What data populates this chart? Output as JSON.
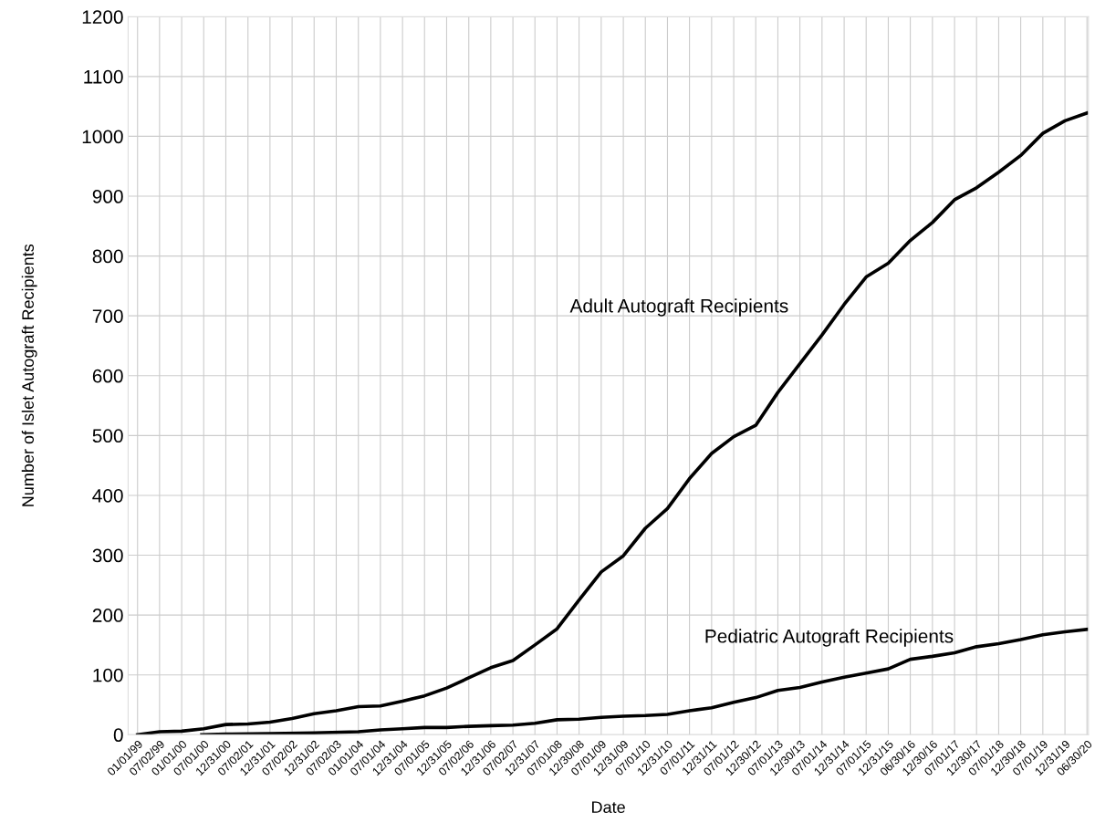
{
  "chart_data": {
    "type": "line",
    "xlabel": "Date",
    "ylabel": "Number of Islet Autograft Recipients",
    "xlim": [
      "1998-10-15",
      "2020-07-12"
    ],
    "ylim": [
      0,
      1200
    ],
    "yticks": [
      0,
      100,
      200,
      300,
      400,
      500,
      600,
      700,
      800,
      900,
      1000,
      1100,
      1200
    ],
    "xticks": [
      {
        "value": "1999-01-01",
        "label": "01/01/99"
      },
      {
        "value": "1999-07-02",
        "label": "07/02/99"
      },
      {
        "value": "2000-01-01",
        "label": "01/01/00"
      },
      {
        "value": "2000-07-01",
        "label": "07/01/00"
      },
      {
        "value": "2000-12-31",
        "label": "12/31/00"
      },
      {
        "value": "2001-07-02",
        "label": "07/02/01"
      },
      {
        "value": "2001-12-31",
        "label": "12/31/01"
      },
      {
        "value": "2002-07-02",
        "label": "07/02/02"
      },
      {
        "value": "2002-12-31",
        "label": "12/31/02"
      },
      {
        "value": "2003-07-02",
        "label": "07/02/03"
      },
      {
        "value": "2004-01-01",
        "label": "01/01/04"
      },
      {
        "value": "2004-07-01",
        "label": "07/01/04"
      },
      {
        "value": "2004-12-31",
        "label": "12/31/04"
      },
      {
        "value": "2005-07-01",
        "label": "07/01/05"
      },
      {
        "value": "2005-12-31",
        "label": "12/31/05"
      },
      {
        "value": "2006-07-02",
        "label": "07/02/06"
      },
      {
        "value": "2006-12-31",
        "label": "12/31/06"
      },
      {
        "value": "2007-07-02",
        "label": "07/02/07"
      },
      {
        "value": "2007-12-31",
        "label": "12/31/07"
      },
      {
        "value": "2008-07-01",
        "label": "07/01/08"
      },
      {
        "value": "2008-12-30",
        "label": "12/30/08"
      },
      {
        "value": "2009-07-01",
        "label": "07/01/09"
      },
      {
        "value": "2009-12-31",
        "label": "12/31/09"
      },
      {
        "value": "2010-07-01",
        "label": "07/01/10"
      },
      {
        "value": "2010-12-31",
        "label": "12/31/10"
      },
      {
        "value": "2011-07-01",
        "label": "07/01/11"
      },
      {
        "value": "2011-12-31",
        "label": "12/31/11"
      },
      {
        "value": "2012-07-01",
        "label": "07/01/12"
      },
      {
        "value": "2012-12-30",
        "label": "12/30/12"
      },
      {
        "value": "2013-07-01",
        "label": "07/01/13"
      },
      {
        "value": "2013-12-30",
        "label": "12/30/13"
      },
      {
        "value": "2014-07-01",
        "label": "07/01/14"
      },
      {
        "value": "2014-12-31",
        "label": "12/31/14"
      },
      {
        "value": "2015-07-01",
        "label": "07/01/15"
      },
      {
        "value": "2015-12-31",
        "label": "12/31/15"
      },
      {
        "value": "2016-06-30",
        "label": "06/30/16"
      },
      {
        "value": "2016-12-30",
        "label": "12/30/16"
      },
      {
        "value": "2017-07-01",
        "label": "07/01/17"
      },
      {
        "value": "2017-12-30",
        "label": "12/30/17"
      },
      {
        "value": "2018-07-01",
        "label": "07/01/18"
      },
      {
        "value": "2018-12-30",
        "label": "12/30/18"
      },
      {
        "value": "2019-07-01",
        "label": "07/01/19"
      },
      {
        "value": "2019-12-31",
        "label": "12/31/19"
      },
      {
        "value": "2020-06-30",
        "label": "06/30/20"
      }
    ],
    "grid": true,
    "legend": false,
    "marker": "none",
    "line_style": "solid",
    "series": [
      {
        "name": "Adult Autograft Recipients",
        "color": "#000000",
        "x": [
          "1999-01-01",
          "1999-07-02",
          "2000-01-01",
          "2000-07-01",
          "2000-12-31",
          "2001-07-02",
          "2001-12-31",
          "2002-07-02",
          "2002-12-31",
          "2003-07-02",
          "2004-01-01",
          "2004-07-01",
          "2004-12-31",
          "2005-07-01",
          "2005-12-31",
          "2006-07-02",
          "2006-12-31",
          "2007-07-02",
          "2007-12-31",
          "2008-07-01",
          "2008-12-30",
          "2009-07-01",
          "2009-12-31",
          "2010-07-01",
          "2010-12-31",
          "2011-07-01",
          "2011-12-31",
          "2012-07-01",
          "2012-12-30",
          "2013-07-01",
          "2013-12-30",
          "2014-07-01",
          "2014-12-31",
          "2015-07-01",
          "2015-12-31",
          "2016-06-30",
          "2016-12-30",
          "2017-07-01",
          "2017-12-30",
          "2018-07-01",
          "2018-12-30",
          "2019-07-01",
          "2019-12-31",
          "2020-06-30"
        ],
        "values": [
          0,
          5,
          6,
          10,
          17,
          18,
          21,
          27,
          35,
          40,
          47,
          48,
          56,
          65,
          78,
          95,
          112,
          124,
          150,
          177,
          225,
          272,
          299,
          345,
          378,
          428,
          470,
          498,
          517,
          572,
          620,
          668,
          719,
          765,
          788,
          826,
          856,
          894,
          914,
          940,
          968,
          1005,
          1026,
          1039
        ]
      },
      {
        "name": "Pediatric Autograft Recipients",
        "color": "#000000",
        "x": [
          "2000-06-15",
          "2000-12-31",
          "2001-12-31",
          "2002-12-31",
          "2004-01-01",
          "2004-07-01",
          "2004-12-31",
          "2005-07-01",
          "2005-12-31",
          "2006-07-02",
          "2006-12-31",
          "2007-07-02",
          "2007-12-31",
          "2008-07-01",
          "2008-12-30",
          "2009-07-01",
          "2009-12-31",
          "2010-07-01",
          "2010-12-31",
          "2011-07-01",
          "2011-12-31",
          "2012-07-01",
          "2012-12-30",
          "2013-07-01",
          "2013-12-30",
          "2014-07-01",
          "2014-12-31",
          "2015-07-01",
          "2015-12-31",
          "2016-06-30",
          "2016-12-30",
          "2017-07-01",
          "2017-12-30",
          "2018-07-01",
          "2018-12-30",
          "2019-07-01",
          "2019-12-31",
          "2020-06-30"
        ],
        "values": [
          0,
          1,
          2,
          3,
          5,
          8,
          10,
          12,
          12,
          14,
          15,
          16,
          19,
          25,
          26,
          29,
          31,
          32,
          34,
          40,
          45,
          54,
          62,
          74,
          79,
          88,
          96,
          103,
          110,
          126,
          131,
          137,
          147,
          152,
          159,
          167,
          172,
          176
        ]
      }
    ]
  }
}
